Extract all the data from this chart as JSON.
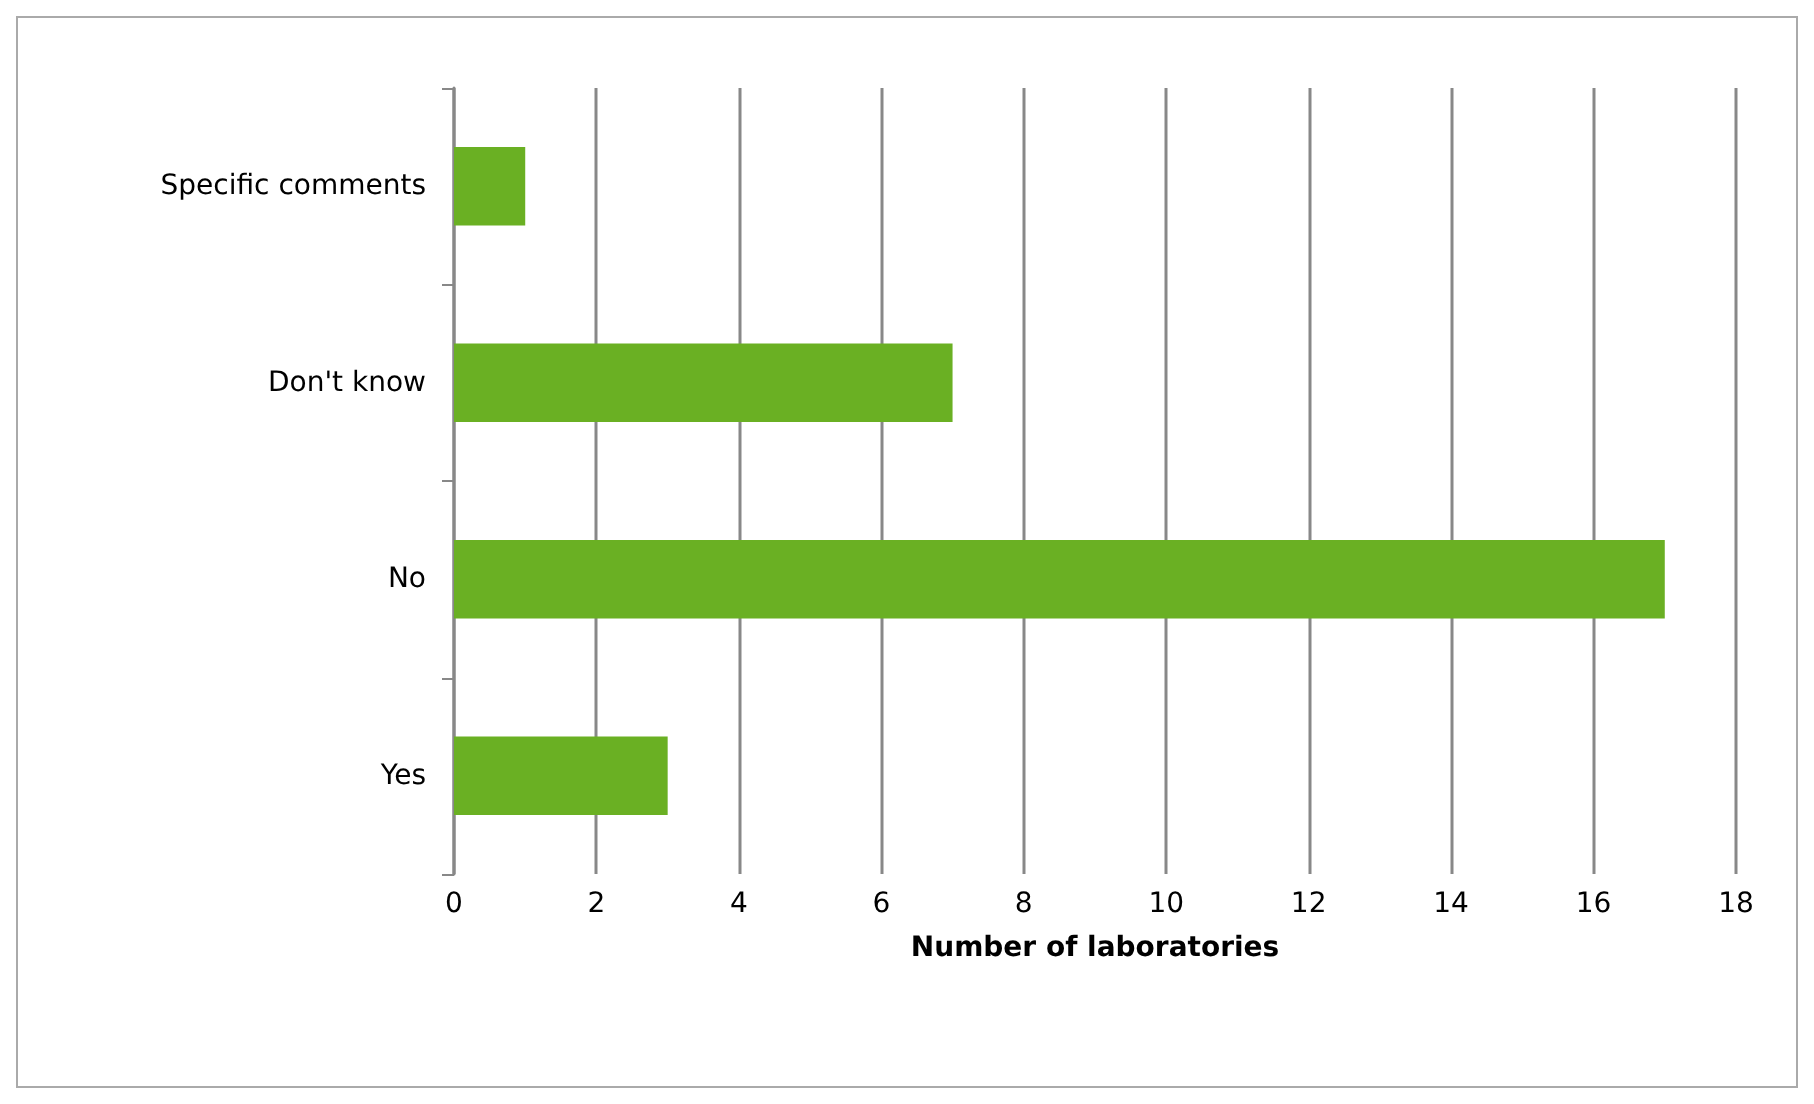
{
  "chart_data": {
    "type": "bar",
    "orientation": "horizontal",
    "xlabel": "Number of laboratories",
    "categories": [
      "Specific comments",
      "Don't know",
      "No",
      "Yes"
    ],
    "values": [
      1,
      7,
      17,
      3
    ],
    "color": "#6ab023",
    "xlim": [
      0,
      18
    ],
    "xticks": [
      0,
      2,
      4,
      6,
      8,
      10,
      12,
      14,
      16,
      18
    ],
    "grid": "x"
  }
}
